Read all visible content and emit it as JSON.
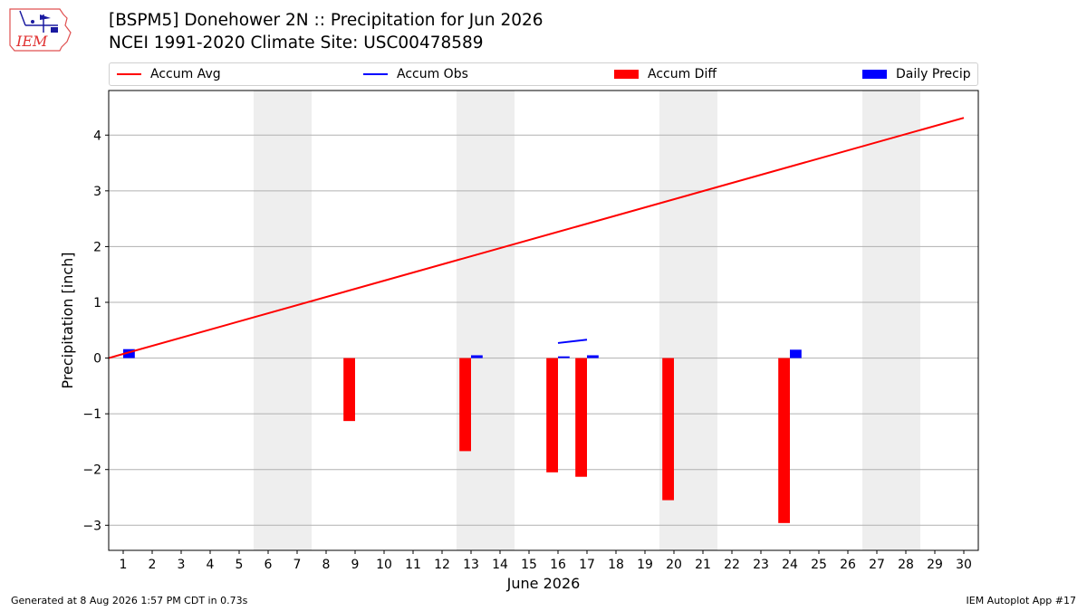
{
  "header": {
    "title_line1": "[BSPM5] Donehower 2N :: Precipitation for Jun 2026",
    "title_line2": "NCEI 1991-2020 Climate Site: USC00478589"
  },
  "logo": {
    "text": "IEM"
  },
  "footer": {
    "left": "Generated at 8 Aug 2026 1:57 PM CDT in 0.73s",
    "right": "IEM Autoplot App #17"
  },
  "legend": {
    "placement": "top",
    "items": [
      {
        "label": "Accum Avg",
        "kind": "line",
        "color": "#ff0000"
      },
      {
        "label": "Accum Obs",
        "kind": "line",
        "color": "#0000ff"
      },
      {
        "label": "Accum Diff",
        "kind": "patch",
        "color": "#ff0000"
      },
      {
        "label": "Daily Precip",
        "kind": "patch",
        "color": "#0000ff"
      }
    ]
  },
  "chart_data": {
    "type": "bar",
    "xlabel": "June 2026",
    "ylabel": "Precipitation [inch]",
    "xlim": [
      0.5,
      30.5
    ],
    "ylim": [
      -3.45,
      4.8
    ],
    "x_ticks": [
      1,
      2,
      3,
      4,
      5,
      6,
      7,
      8,
      9,
      10,
      11,
      12,
      13,
      14,
      15,
      16,
      17,
      18,
      19,
      20,
      21,
      22,
      23,
      24,
      25,
      26,
      27,
      28,
      29,
      30
    ],
    "y_ticks": [
      -3,
      -2,
      -1,
      0,
      1,
      2,
      3,
      4
    ],
    "grid": "horizontal",
    "weekend_shading": [
      [
        5.5,
        7.5
      ],
      [
        12.5,
        14.5
      ],
      [
        19.5,
        21.5
      ],
      [
        26.5,
        28.5
      ]
    ],
    "colors": {
      "accum_avg": "#ff0000",
      "accum_obs": "#0000ff",
      "accum_diff": "#ff0000",
      "daily_precip": "#0000ff",
      "weekend": "#eeeeee"
    },
    "series": [
      {
        "name": "Accum Avg",
        "type": "line",
        "x": [
          0.5,
          30
        ],
        "y": [
          0.0,
          4.31
        ]
      },
      {
        "name": "Accum Obs",
        "type": "line",
        "segments": [
          {
            "x": [
              16,
              17
            ],
            "y": [
              0.27,
              0.33
            ]
          }
        ]
      },
      {
        "name": "Accum Diff",
        "type": "bar",
        "x": [
          9,
          13,
          16,
          17,
          20,
          24
        ],
        "y": [
          -1.13,
          -1.67,
          -2.05,
          -2.13,
          -2.55,
          -2.96
        ]
      },
      {
        "name": "Daily Precip",
        "type": "bar",
        "x": [
          1,
          13,
          16,
          17,
          24
        ],
        "y": [
          0.16,
          0.05,
          0.03,
          0.05,
          0.15
        ]
      }
    ]
  }
}
